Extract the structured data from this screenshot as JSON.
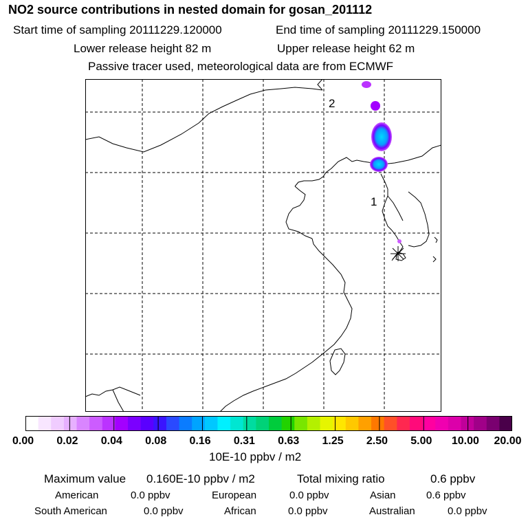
{
  "header": {
    "title": "NO2 source contributions in nested domain for gosan_201112",
    "start_time": "Start time of sampling 20111229.120000",
    "end_time": "End time of sampling 20111229.150000",
    "lower_release": "Lower release height   82 m",
    "upper_release": "Upper release height   62 m",
    "note": "Passive tracer used, meteorological data are from ECMWF"
  },
  "map": {
    "point_labels": [
      "2",
      "1"
    ],
    "grid": "dashed"
  },
  "colorbar": {
    "ticks": [
      "0.00",
      "0.02",
      "0.04",
      "0.08",
      "0.16",
      "0.31",
      "0.63",
      "1.25",
      "2.50",
      "5.00",
      "10.00",
      "20.00"
    ],
    "unit": "10E-10 ppbv / m2",
    "colors": [
      "#ffffff",
      "#f8e6ff",
      "#f0ccff",
      "#e7b0ff",
      "#d985ff",
      "#cc5cff",
      "#bb33ff",
      "#a300ff",
      "#7b00ff",
      "#5a00ff",
      "#3a14ff",
      "#2a4aff",
      "#0a7cff",
      "#00a4ff",
      "#00c8ff",
      "#00f0ff",
      "#00e6d2",
      "#00dca0",
      "#00d278",
      "#00cc3c",
      "#22d200",
      "#78e600",
      "#b4f000",
      "#e6f500",
      "#ffe600",
      "#ffc800",
      "#ffa000",
      "#ff7800",
      "#ff5028",
      "#ff2850",
      "#ff0a7a",
      "#ff00a0",
      "#f000b0",
      "#dc00aa",
      "#c0009a",
      "#a00088",
      "#7a0070",
      "#4a004a"
    ]
  },
  "stats": {
    "max_label": "Maximum value",
    "max_value": "0.160E-10 ppbv / m2",
    "total_label": "Total mixing ratio",
    "total_value": "0.6 ppbv",
    "regions": [
      {
        "name": "American",
        "value": "0.0 ppbv"
      },
      {
        "name": "European",
        "value": "0.0 ppbv"
      },
      {
        "name": "Asian",
        "value": "0.6 ppbv"
      },
      {
        "name": "South American",
        "value": "0.0 ppbv"
      },
      {
        "name": "African",
        "value": "0.0 ppbv"
      },
      {
        "name": "Australian",
        "value": "0.0 ppbv"
      }
    ]
  }
}
